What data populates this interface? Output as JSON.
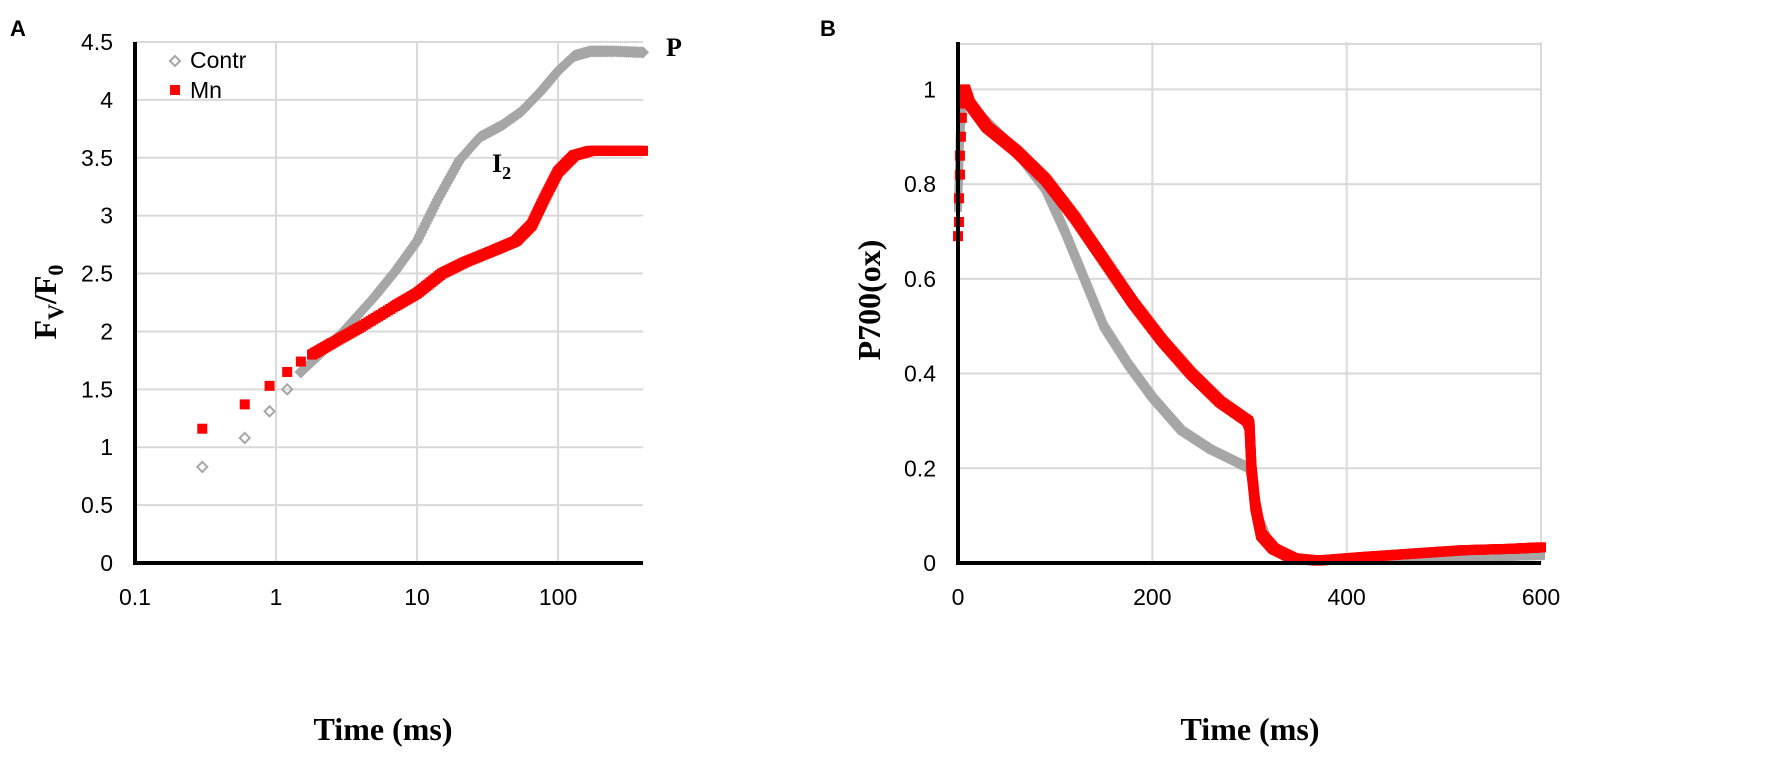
{
  "colors": {
    "contr": "#a6a6a6",
    "mn": "#ff0000",
    "grid": "#d9d9d9",
    "axis": "#000000"
  },
  "chart_data": [
    {
      "panel": "A",
      "type": "scatter",
      "xscale": "log",
      "xlim": [
        0.1,
        400
      ],
      "ylim": [
        0,
        4.5
      ],
      "xticks": [
        0.1,
        1,
        10,
        100
      ],
      "xtick_labels": [
        "0.1",
        "1",
        "10",
        "100"
      ],
      "yticks": [
        0,
        0.5,
        1,
        1.5,
        2,
        2.5,
        3,
        3.5,
        4,
        4.5
      ],
      "ytick_labels": [
        "0",
        "0.5",
        "1",
        "1.5",
        "2",
        "2.5",
        "3",
        "3.5",
        "4",
        "4.5"
      ],
      "xlabel": "Time (ms)",
      "ylabel_main": "F",
      "ylabel_sub1": "V",
      "ylabel_mid": "/F",
      "ylabel_sub2": "0",
      "legend": {
        "position": "top-left",
        "entries": [
          "Contr",
          "Mn"
        ]
      },
      "annotations": [
        {
          "text": "P",
          "x": 400,
          "y": 4.4
        },
        {
          "main": "I",
          "sub": "2",
          "x": 28,
          "y": 3.45
        }
      ],
      "series": [
        {
          "name": "Contr",
          "color": "#a6a6a6",
          "marker": "diamond",
          "sparse": [
            [
              0.3,
              0.83
            ],
            [
              0.6,
              1.08
            ],
            [
              0.9,
              1.31
            ],
            [
              1.2,
              1.5
            ],
            [
              1.5,
              1.65
            ]
          ],
          "curve": [
            [
              1.5,
              1.65
            ],
            [
              2,
              1.79
            ],
            [
              3,
              2.0
            ],
            [
              5,
              2.3
            ],
            [
              7,
              2.52
            ],
            [
              10,
              2.78
            ],
            [
              14,
              3.14
            ],
            [
              20,
              3.48
            ],
            [
              28,
              3.68
            ],
            [
              40,
              3.78
            ],
            [
              55,
              3.9
            ],
            [
              75,
              4.07
            ],
            [
              100,
              4.25
            ],
            [
              130,
              4.38
            ],
            [
              170,
              4.42
            ],
            [
              250,
              4.42
            ],
            [
              400,
              4.41
            ]
          ]
        },
        {
          "name": "Mn",
          "color": "#ff0000",
          "marker": "square",
          "sparse": [
            [
              0.3,
              1.16
            ],
            [
              0.6,
              1.37
            ],
            [
              0.9,
              1.53
            ],
            [
              1.2,
              1.65
            ],
            [
              1.5,
              1.74
            ]
          ],
          "curve": [
            [
              1.8,
              1.8
            ],
            [
              2.5,
              1.9
            ],
            [
              4,
              2.04
            ],
            [
              7,
              2.22
            ],
            [
              10,
              2.33
            ],
            [
              15,
              2.5
            ],
            [
              22,
              2.6
            ],
            [
              35,
              2.7
            ],
            [
              50,
              2.78
            ],
            [
              65,
              2.92
            ],
            [
              80,
              3.15
            ],
            [
              100,
              3.38
            ],
            [
              130,
              3.52
            ],
            [
              170,
              3.56
            ],
            [
              250,
              3.56
            ],
            [
              400,
              3.56
            ]
          ]
        }
      ]
    },
    {
      "panel": "B",
      "type": "scatter",
      "xlim": [
        0,
        600
      ],
      "ylim": [
        0,
        1.1
      ],
      "xticks": [
        0,
        200,
        400,
        600
      ],
      "xtick_labels": [
        "0",
        "200",
        "400",
        "600"
      ],
      "yticks": [
        0,
        0.2,
        0.4,
        0.6,
        0.8,
        1
      ],
      "ytick_labels": [
        "0",
        "0.2",
        "0.4",
        "0.6",
        "0.8",
        "1"
      ],
      "xlabel": "Time (ms)",
      "ylabel": "P700(ox)",
      "series": [
        {
          "name": "Contr",
          "color": "#a6a6a6",
          "curve": [
            [
              0,
              0.75
            ],
            [
              2,
              0.9
            ],
            [
              5,
              0.98
            ],
            [
              10,
              0.97
            ],
            [
              30,
              0.93
            ],
            [
              60,
              0.87
            ],
            [
              90,
              0.79
            ],
            [
              110,
              0.7
            ],
            [
              130,
              0.6
            ],
            [
              150,
              0.5
            ],
            [
              175,
              0.42
            ],
            [
              200,
              0.35
            ],
            [
              230,
              0.28
            ],
            [
              260,
              0.24
            ],
            [
              290,
              0.21
            ],
            [
              300,
              0.2
            ],
            [
              305,
              0.15
            ],
            [
              310,
              0.09
            ],
            [
              320,
              0.04
            ],
            [
              340,
              0.01
            ],
            [
              360,
              0.005
            ],
            [
              400,
              0.005
            ],
            [
              450,
              0.008
            ],
            [
              500,
              0.01
            ],
            [
              550,
              0.012
            ],
            [
              600,
              0.015
            ]
          ]
        },
        {
          "name": "Mn",
          "color": "#ff0000",
          "points_sparse": [
            [
              0,
              0.69
            ],
            [
              1,
              0.72
            ],
            [
              1,
              0.77
            ],
            [
              2,
              0.82
            ],
            [
              2,
              0.86
            ],
            [
              3,
              0.9
            ],
            [
              4,
              0.94
            ]
          ],
          "curve": [
            [
              4,
              0.97
            ],
            [
              7,
              1.0
            ],
            [
              12,
              0.97
            ],
            [
              30,
              0.92
            ],
            [
              60,
              0.87
            ],
            [
              90,
              0.81
            ],
            [
              120,
              0.73
            ],
            [
              150,
              0.64
            ],
            [
              180,
              0.55
            ],
            [
              210,
              0.47
            ],
            [
              240,
              0.4
            ],
            [
              270,
              0.34
            ],
            [
              298,
              0.3
            ],
            [
              300,
              0.29
            ],
            [
              302,
              0.2
            ],
            [
              306,
              0.12
            ],
            [
              312,
              0.06
            ],
            [
              325,
              0.03
            ],
            [
              345,
              0.01
            ],
            [
              370,
              0.005
            ],
            [
              420,
              0.013
            ],
            [
              470,
              0.02
            ],
            [
              520,
              0.027
            ],
            [
              570,
              0.03
            ],
            [
              600,
              0.033
            ]
          ]
        }
      ]
    }
  ]
}
